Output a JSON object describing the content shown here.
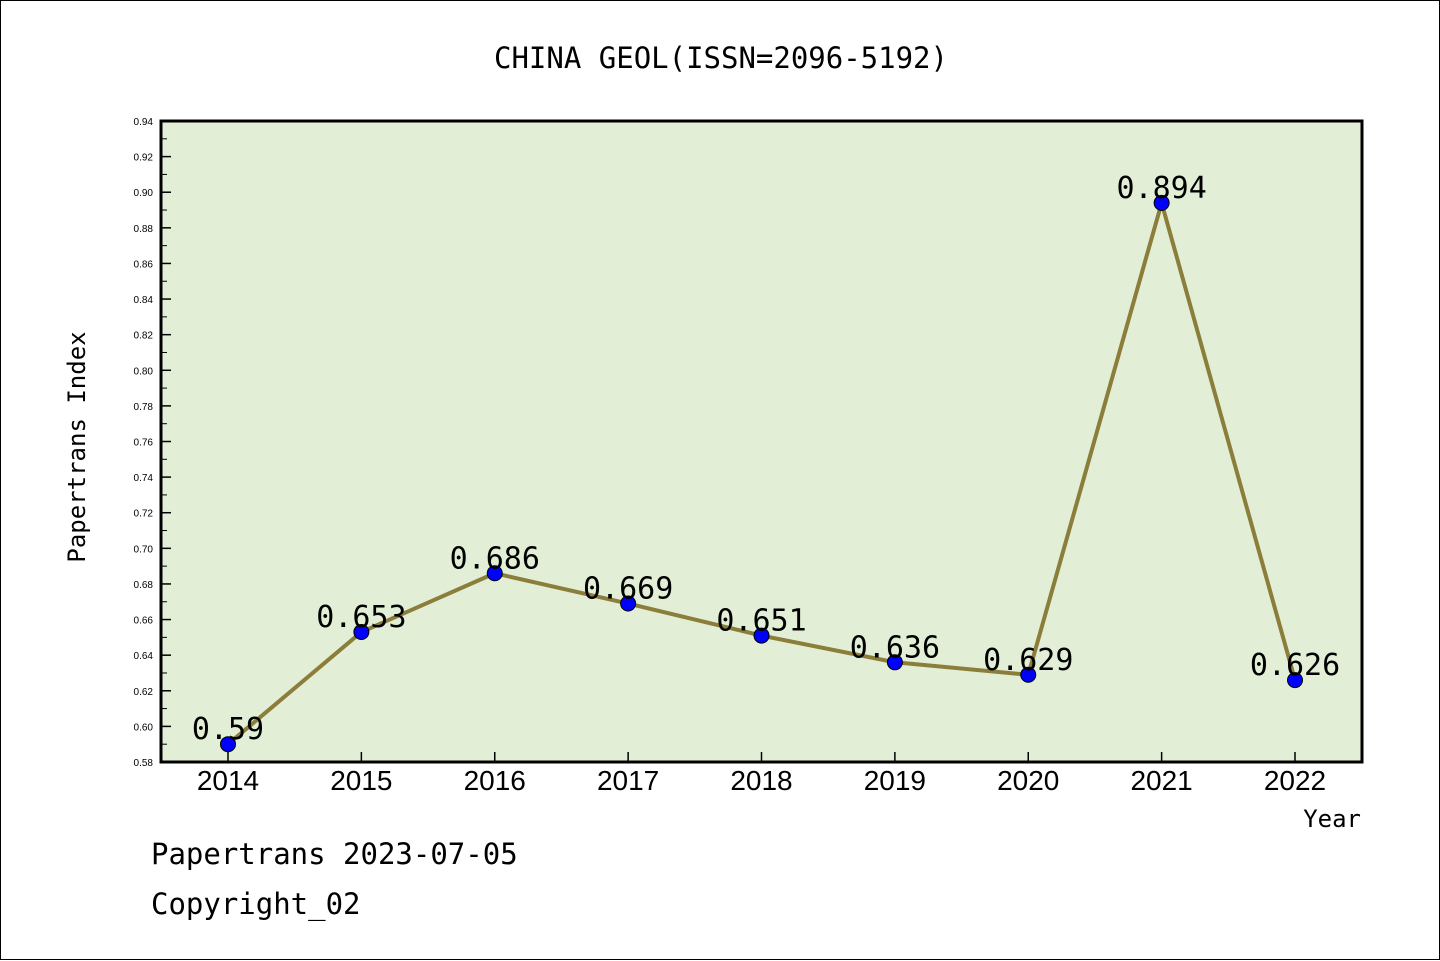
{
  "chart_data": {
    "type": "line",
    "title": "CHINA GEOL(ISSN=2096-5192)",
    "xlabel": "Year",
    "ylabel": "Papertrans Index",
    "categories": [
      "2014",
      "2015",
      "2016",
      "2017",
      "2018",
      "2019",
      "2020",
      "2021",
      "2022"
    ],
    "series": [
      {
        "values": [
          0.59,
          0.653,
          0.686,
          0.669,
          0.651,
          0.636,
          0.629,
          0.894,
          0.626
        ],
        "labels": [
          "0.59",
          "0.653",
          "0.686",
          "0.669",
          "0.651",
          "0.636",
          "0.629",
          "0.894",
          "0.626"
        ]
      }
    ],
    "ylim": [
      0.58,
      0.94
    ],
    "yticks": [
      "0.58",
      "0.60",
      "0.62",
      "0.64",
      "0.66",
      "0.68",
      "0.70",
      "0.72",
      "0.74",
      "0.76",
      "0.78",
      "0.80",
      "0.82",
      "0.84",
      "0.86",
      "0.88",
      "0.90",
      "0.92",
      "0.94"
    ],
    "grid": false,
    "colors": {
      "plot_background": "#e2efd6",
      "line": "#8b7d3a",
      "marker": "#0000ff"
    }
  },
  "footer": {
    "line1": "Papertrans 2023-07-05",
    "line2": "Copyright_02"
  }
}
